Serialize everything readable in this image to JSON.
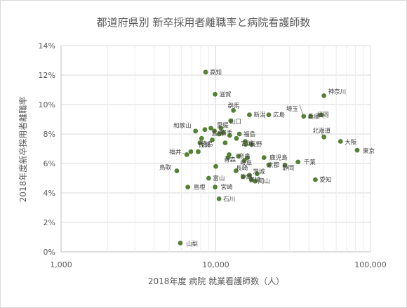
{
  "chart_data": {
    "type": "scatter",
    "title": "都道府県別 新卒採用者離職率と病院看護師数",
    "xlabel": "2018年度 病院 就業看護師数（人）",
    "ylabel": "2018年度新卒採用者離職率",
    "x_scale": "log",
    "xlim": [
      1000,
      100000
    ],
    "ylim": [
      0,
      14
    ],
    "x_ticks": [
      "1,000",
      "10,000",
      "100,000"
    ],
    "y_ticks": [
      "0%",
      "2%",
      "4%",
      "6%",
      "8%",
      "10%",
      "12%",
      "14%"
    ],
    "grid": true,
    "marker_color": "#548235",
    "points": [
      {
        "label": "高知",
        "x": 8600,
        "y": 12.2
      },
      {
        "label": "滋賀",
        "x": 9900,
        "y": 10.7
      },
      {
        "label": "埼玉",
        "x": 37000,
        "y": 9.2
      },
      {
        "label": "神奈川",
        "x": 50000,
        "y": 10.6
      },
      {
        "label": "群馬",
        "x": 13000,
        "y": 9.6
      },
      {
        "label": "新潟",
        "x": 16500,
        "y": 9.3
      },
      {
        "label": "広島",
        "x": 22000,
        "y": 9.3
      },
      {
        "label": "兵庫",
        "x": 41000,
        "y": 9.2
      },
      {
        "label": "福岡",
        "x": 48000,
        "y": 9.3
      },
      {
        "label": "山口",
        "x": 12500,
        "y": 8.9
      },
      {
        "label": "和歌山",
        "x": 7400,
        "y": 8.2
      },
      {
        "label": "",
        "x": 8500,
        "y": 8.3
      },
      {
        "label": "",
        "x": 9300,
        "y": 8.4
      },
      {
        "label": "島根",
        "x": 9800,
        "y": 8.2
      },
      {
        "label": "愛媛",
        "x": 10800,
        "y": 8.4
      },
      {
        "label": "",
        "x": 10500,
        "y": 8.0
      },
      {
        "label": "岩手",
        "x": 11200,
        "y": 8.1
      },
      {
        "label": "",
        "x": 12300,
        "y": 7.9
      },
      {
        "label": "福島",
        "x": 14200,
        "y": 8.0
      },
      {
        "label": "",
        "x": 13600,
        "y": 7.7
      },
      {
        "label": "佐賀",
        "x": 7900,
        "y": 7.4
      },
      {
        "label": "",
        "x": 8100,
        "y": 7.7
      },
      {
        "label": "",
        "x": 9500,
        "y": 7.6
      },
      {
        "label": "",
        "x": 11500,
        "y": 7.4
      },
      {
        "label": "宮城",
        "x": 15500,
        "y": 7.5
      },
      {
        "label": "長野",
        "x": 17000,
        "y": 7.3
      },
      {
        "label": "",
        "x": 15600,
        "y": 7.3
      },
      {
        "label": "北海道",
        "x": 50000,
        "y": 7.8
      },
      {
        "label": "大阪",
        "x": 64000,
        "y": 7.5
      },
      {
        "label": "東京",
        "x": 82000,
        "y": 6.9
      },
      {
        "label": "福井",
        "x": 6500,
        "y": 6.6
      },
      {
        "label": "",
        "x": 6900,
        "y": 6.8
      },
      {
        "label": "徳島",
        "x": 7700,
        "y": 6.8
      },
      {
        "label": "青森",
        "x": 12000,
        "y": 6.4
      },
      {
        "label": "",
        "x": 12200,
        "y": 6.6
      },
      {
        "label": "奈良",
        "x": 14000,
        "y": 6.5
      },
      {
        "label": "",
        "x": 16000,
        "y": 6.4
      },
      {
        "label": "鹿児島",
        "x": 20500,
        "y": 6.4
      },
      {
        "label": "岐阜",
        "x": 15300,
        "y": 6.2
      },
      {
        "label": "",
        "x": 10000,
        "y": 5.8
      },
      {
        "label": "京都",
        "x": 22000,
        "y": 5.9
      },
      {
        "label": "静岡",
        "x": 28000,
        "y": 5.9
      },
      {
        "label": "千葉",
        "x": 34000,
        "y": 6.1
      },
      {
        "label": "鳥取",
        "x": 5600,
        "y": 5.5
      },
      {
        "label": "長崎",
        "x": 13500,
        "y": 5.5
      },
      {
        "label": "茨城",
        "x": 18500,
        "y": 5.3
      },
      {
        "label": "沖縄",
        "x": 15000,
        "y": 5.1
      },
      {
        "label": "",
        "x": 16500,
        "y": 5.2
      },
      {
        "label": "富山",
        "x": 9000,
        "y": 5.0
      },
      {
        "label": "宮城",
        "x": 17000,
        "y": 4.9
      },
      {
        "label": "岡山",
        "x": 18000,
        "y": 4.8
      },
      {
        "label": "愛知",
        "x": 44000,
        "y": 4.9
      },
      {
        "label": "島根",
        "x": 6600,
        "y": 4.4
      },
      {
        "label": "宮崎",
        "x": 9900,
        "y": 4.4
      },
      {
        "label": "石川",
        "x": 10500,
        "y": 3.6
      },
      {
        "label": "山梨",
        "x": 5900,
        "y": 0.6
      }
    ]
  }
}
